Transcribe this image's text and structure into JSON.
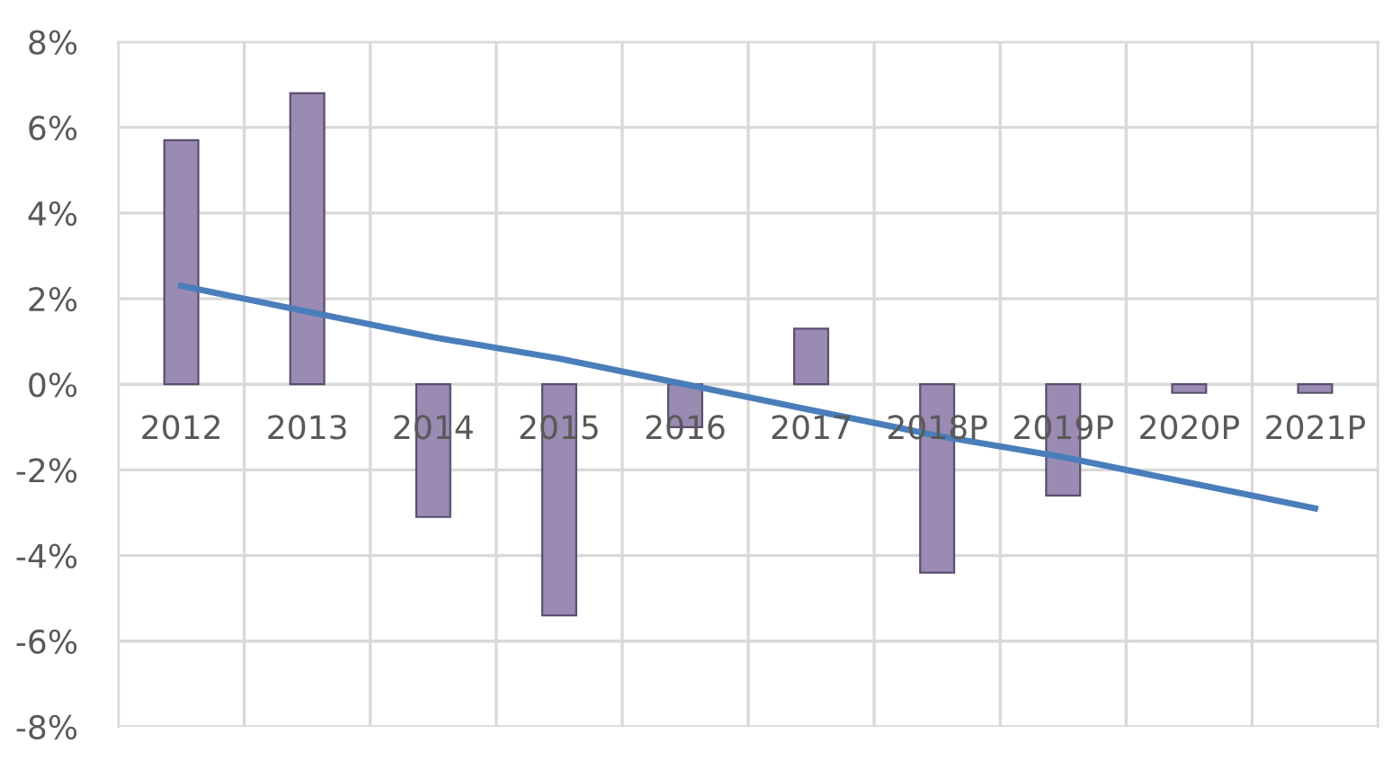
{
  "chart_data": {
    "type": "bar",
    "categories": [
      "2012",
      "2013",
      "2014",
      "2015",
      "2016",
      "2017",
      "2018P",
      "2019P",
      "2020P",
      "2021P"
    ],
    "series": [
      {
        "color": "#9a8bb3",
        "values": [
          5.7,
          6.8,
          -3.1,
          -5.4,
          -1.0,
          1.3,
          -4.4,
          -2.6,
          -0.2,
          -0.2
        ]
      },
      {
        "type": "line",
        "color": "#4a7ebb",
        "values": [
          2.3,
          1.7,
          1.1,
          0.6,
          0.0,
          -0.6,
          -1.2,
          -1.7,
          -2.3,
          -2.9
        ]
      }
    ],
    "ylim": [
      -8,
      8
    ],
    "yticks": [
      {
        "value": 8,
        "label": "8%"
      },
      {
        "value": 6,
        "label": "6%"
      },
      {
        "value": 4,
        "label": "4%"
      },
      {
        "value": 2,
        "label": "2%"
      },
      {
        "value": 0,
        "label": "0%"
      },
      {
        "value": -2,
        "label": "-2%"
      },
      {
        "value": -4,
        "label": "-4%"
      },
      {
        "value": -6,
        "label": "-6%"
      },
      {
        "value": -8,
        "label": "-8%"
      }
    ],
    "grid": true,
    "marker": "none",
    "line_style": "solid"
  }
}
